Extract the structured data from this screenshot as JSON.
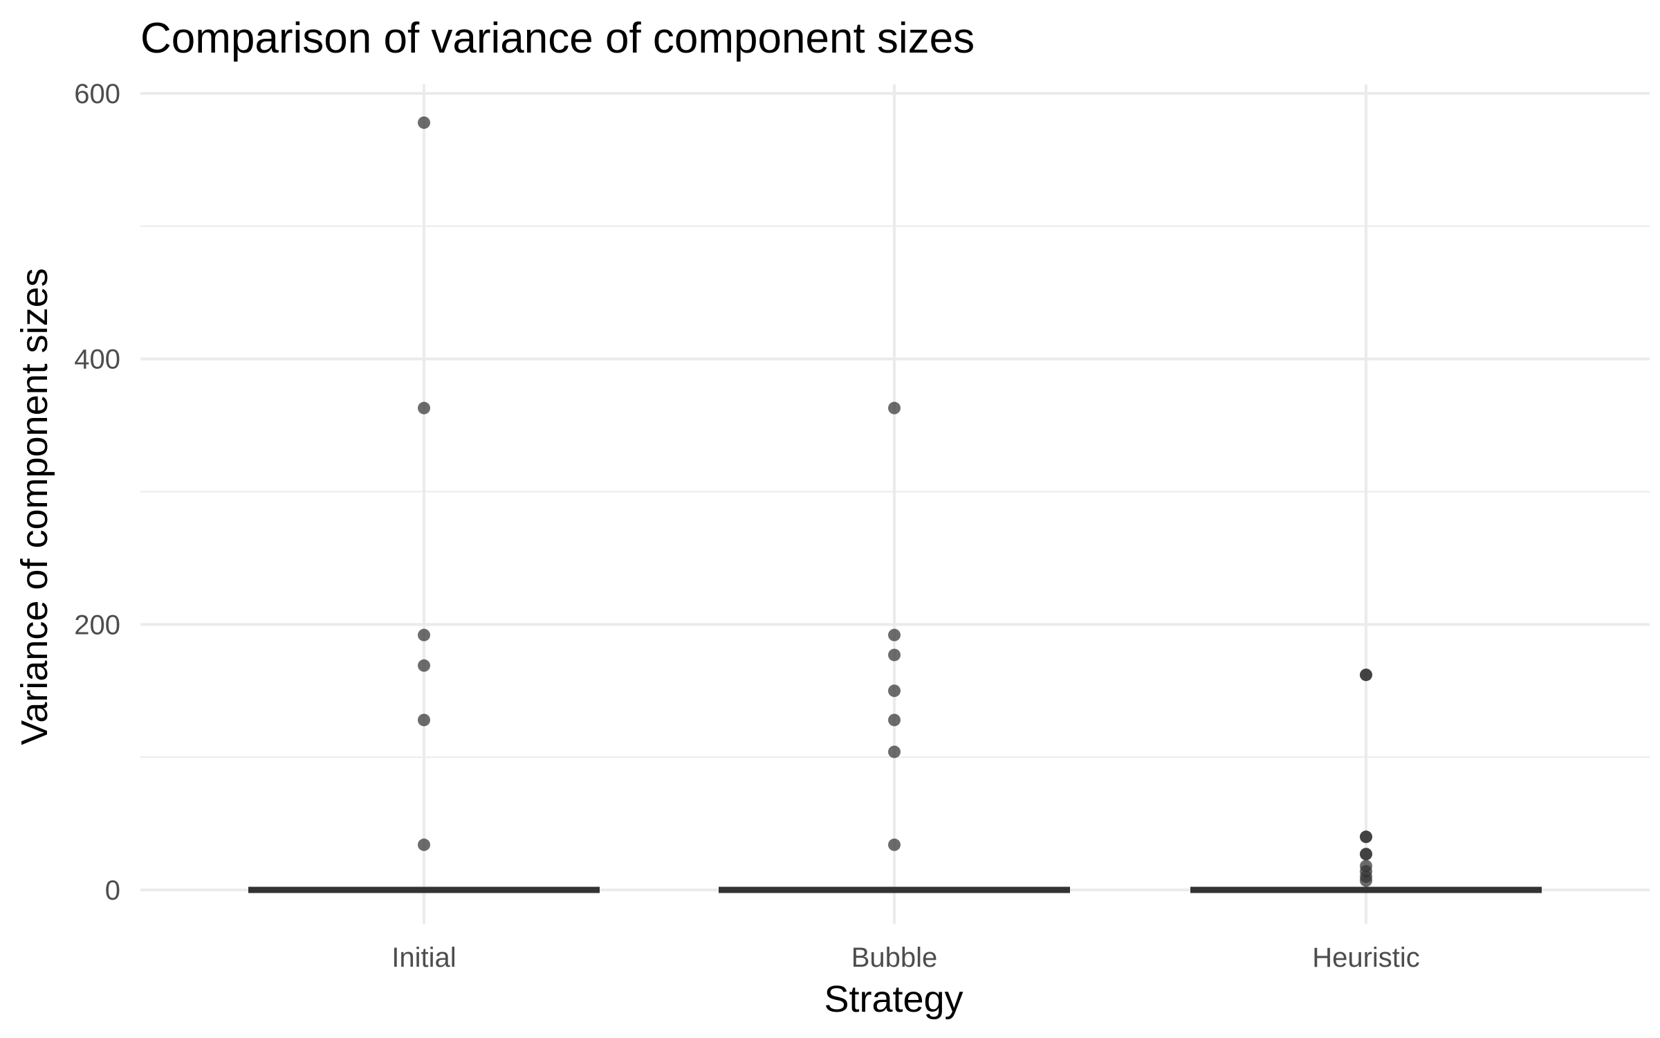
{
  "chart_data": {
    "type": "boxplot",
    "title": "Comparison of variance of component sizes",
    "xlabel": "Strategy",
    "ylabel": "Variance of component sizes",
    "categories": [
      "Initial",
      "Bubble",
      "Heuristic"
    ],
    "ylim": [
      -45,
      608
    ],
    "yticks": [
      0,
      200,
      400,
      600
    ],
    "yticks_minor": [
      100,
      300,
      500
    ],
    "grid": true,
    "boxes": [
      {
        "category": "Initial",
        "q1": 0,
        "median": 0,
        "q3": 0,
        "outliers": [
          578,
          363,
          192,
          169,
          128,
          34
        ]
      },
      {
        "category": "Bubble",
        "q1": 0,
        "median": 0,
        "q3": 0,
        "outliers": [
          363,
          192,
          177,
          150,
          128,
          104,
          34
        ]
      },
      {
        "category": "Heuristic",
        "q1": 0,
        "median": 0,
        "q3": 0,
        "outliers": [
          162,
          162,
          40,
          40,
          27,
          27,
          18,
          14,
          10,
          7
        ]
      }
    ]
  }
}
